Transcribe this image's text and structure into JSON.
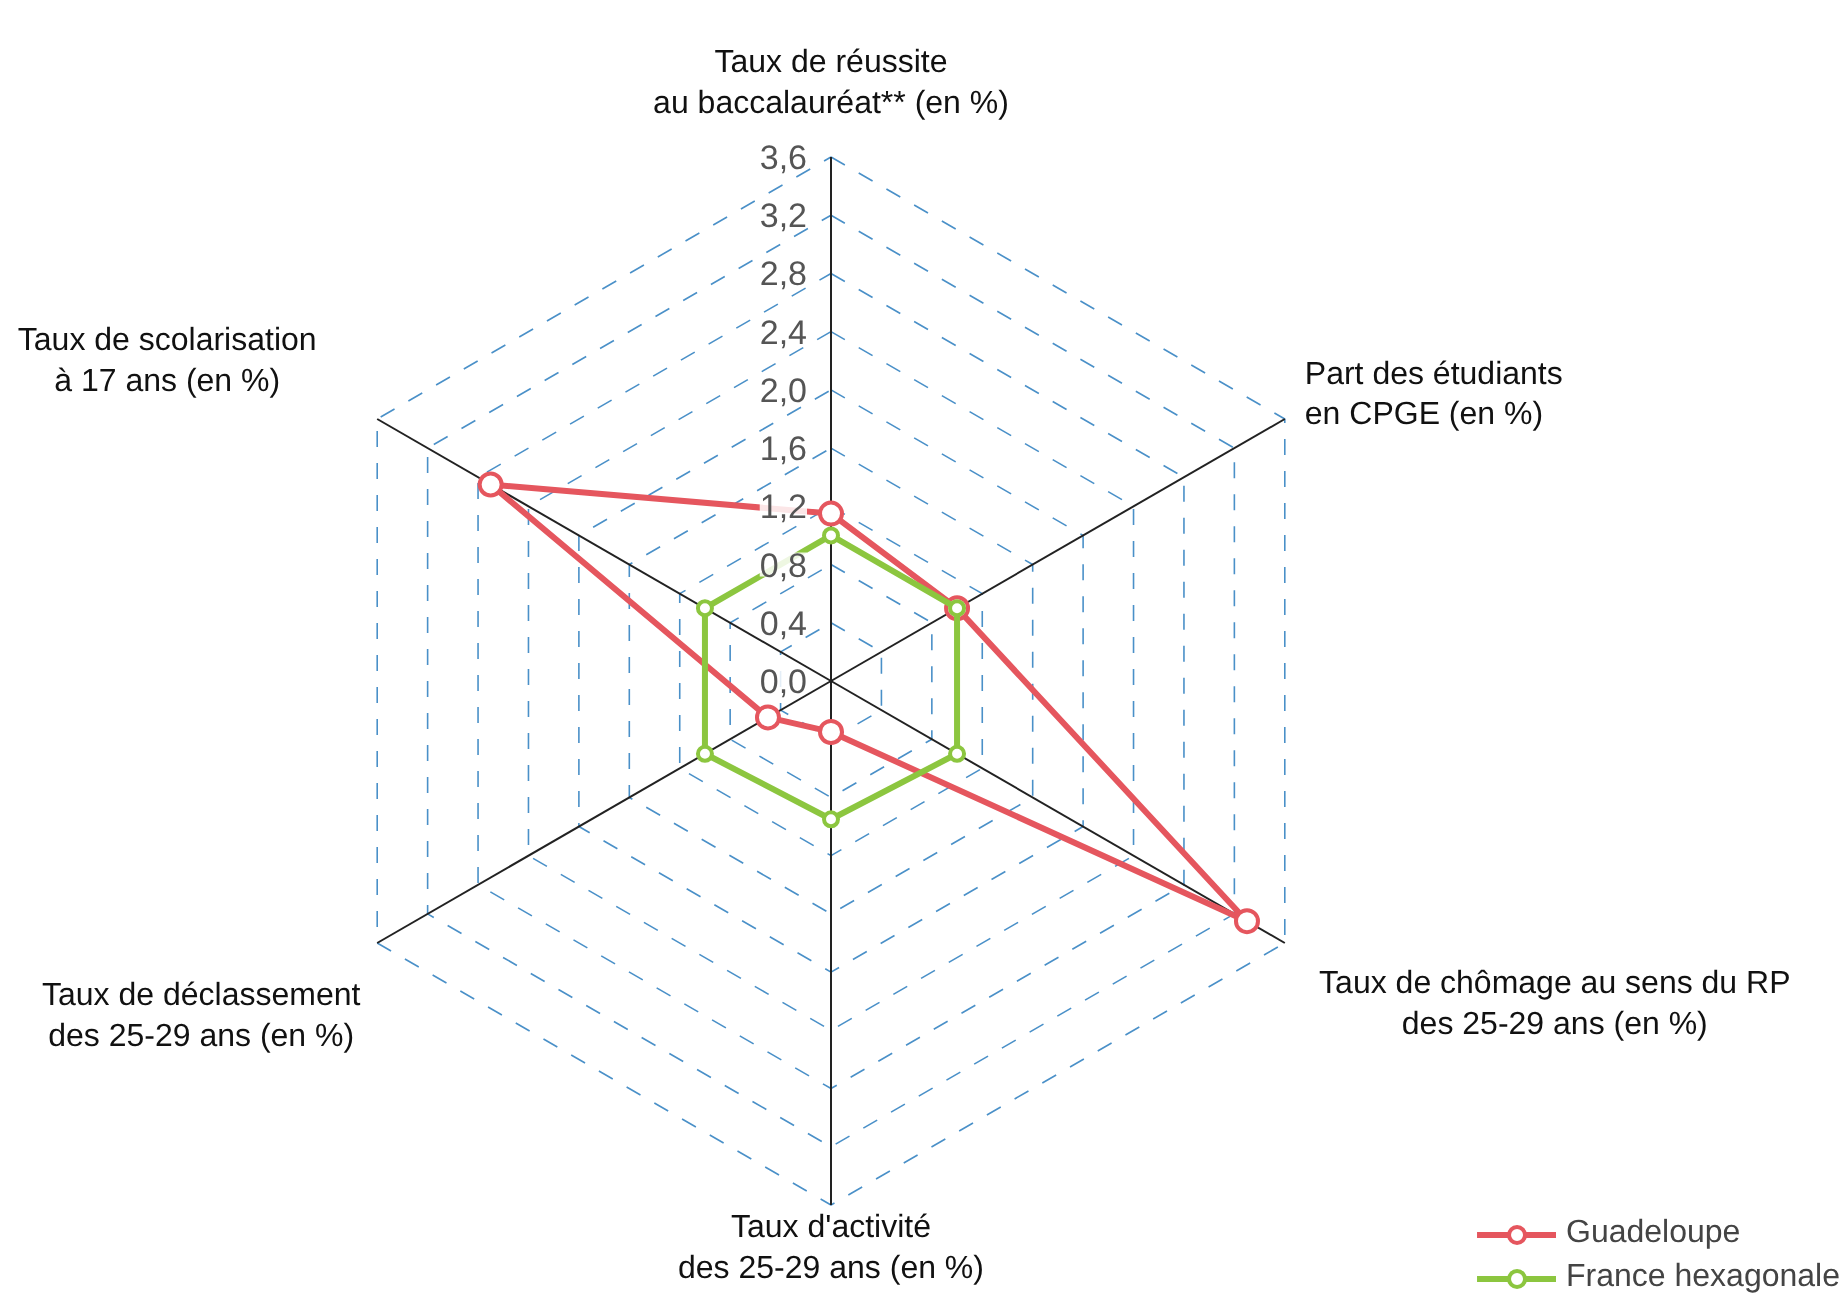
{
  "chart_data": {
    "type": "radar",
    "categories": [
      "Taux de réussite\nau baccalauréat** (en %)",
      "Part des étudiants\nen CPGE (en %)",
      "Taux de chômage au sens du RP\ndes 25-29 ans (en %)",
      "Taux d'activité\ndes 25-29 ans (en %)",
      "Taux de déclassement\ndes 25-29 ans (en %)",
      "Taux de scolarisation\nà 17 ans (en %)"
    ],
    "series": [
      {
        "name": "Guadeloupe",
        "color": "#e5565e",
        "values": [
          1.15,
          1.0,
          3.3,
          0.35,
          0.5,
          2.7
        ]
      },
      {
        "name": "France hexagonale",
        "color": "#8cc63f",
        "values": [
          1.0,
          1.0,
          1.0,
          0.95,
          1.0,
          1.0
        ]
      }
    ],
    "ylim": [
      0,
      3.6
    ],
    "yticks": [
      {
        "value": 0,
        "label": "0,0"
      },
      {
        "value": 0.4,
        "label": "0,4"
      },
      {
        "value": 0.8,
        "label": "0,8"
      },
      {
        "value": 1.2,
        "label": "1,2"
      },
      {
        "value": 1.6,
        "label": "1,6"
      },
      {
        "value": 2.0,
        "label": "2,0"
      },
      {
        "value": 2.4,
        "label": "2,4"
      },
      {
        "value": 2.8,
        "label": "2,8"
      },
      {
        "value": 3.2,
        "label": "3,2"
      },
      {
        "value": 3.6,
        "label": "3,6"
      }
    ],
    "grid": true,
    "legend": "bottom right",
    "marker": "circle",
    "line_style": "solid"
  }
}
